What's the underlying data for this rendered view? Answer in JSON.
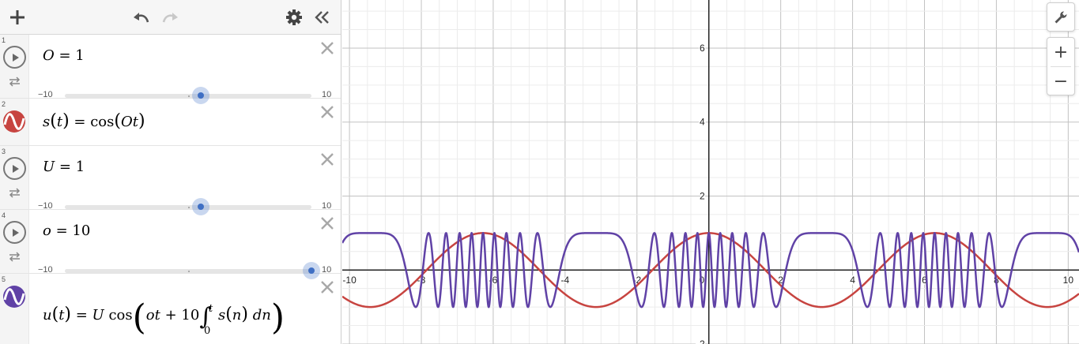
{
  "toolbar": {
    "add_icon": "plus-icon",
    "undo_icon": "undo-icon",
    "redo_icon": "redo-icon",
    "settings_icon": "gear-icon",
    "collapse_icon": "double-chevron-left-icon"
  },
  "expressions": [
    {
      "index": "1",
      "type": "slider",
      "var": "O",
      "value": "1",
      "min": "−10",
      "max": "10",
      "position": 0.55
    },
    {
      "index": "2",
      "type": "function",
      "text": "s(t) = cos(Ot)",
      "color": "#c74440"
    },
    {
      "index": "3",
      "type": "slider",
      "var": "U",
      "value": "1",
      "min": "−10",
      "max": "10",
      "position": 0.55
    },
    {
      "index": "4",
      "type": "slider",
      "var": "o",
      "value": "10",
      "min": "−10",
      "max": "10",
      "position": 1.0
    },
    {
      "index": "5",
      "type": "function",
      "text": "u(t) = U cos( ot + 10 ∫ s(n) dn )",
      "integral_upper": "t",
      "integral_lower": "0",
      "color": "#6042a6"
    }
  ],
  "graph": {
    "x_tick_labels": [
      "-10",
      "-8",
      "-6",
      "-4",
      "-2",
      "0",
      "2",
      "4",
      "6",
      "8",
      "10"
    ],
    "y_tick_labels": [
      "6",
      "4",
      "2",
      "-2"
    ],
    "x_min": -10.2,
    "x_max": 10.3,
    "y_min": -2.0,
    "y_max": 7.3,
    "grid": true
  },
  "controls": {
    "wrench_icon": "wrench-icon",
    "zoom_in_label": "+",
    "zoom_out_label": "−"
  },
  "chart_data": {
    "type": "line",
    "series": [
      {
        "name": "s(t) = cos(Ot)",
        "color": "#c74440"
      },
      {
        "name": "u(t) = U cos(ot + 10∫₀ᵗ s(n) dn)",
        "color": "#6042a6"
      }
    ],
    "x_range": [
      -10.2,
      10.3
    ],
    "y_range": [
      -2.0,
      7.3
    ]
  }
}
